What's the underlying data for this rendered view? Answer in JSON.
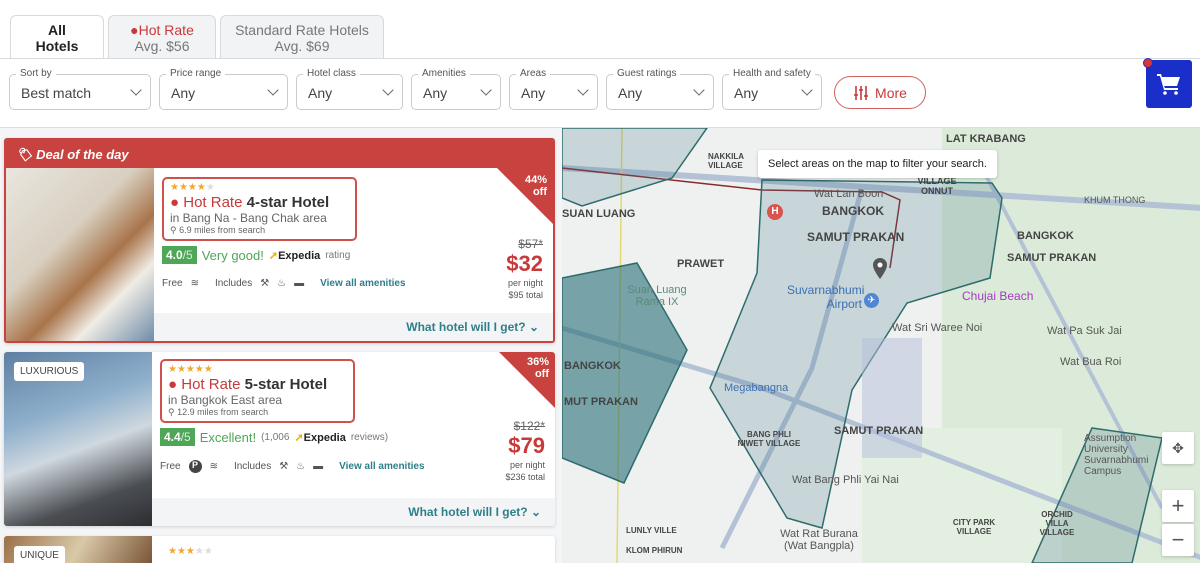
{
  "tabs": [
    {
      "label1": "All",
      "label2": "Hotels"
    },
    {
      "label1": "Hot Rate",
      "label2": "Avg. $56"
    },
    {
      "label1": "Standard Rate Hotels",
      "label2": "Avg. $69"
    }
  ],
  "filters": [
    {
      "label": "Sort by",
      "value": "Best match"
    },
    {
      "label": "Price range",
      "value": "Any"
    },
    {
      "label": "Hotel class",
      "value": "Any"
    },
    {
      "label": "Amenities",
      "value": "Any"
    },
    {
      "label": "Areas",
      "value": "Any"
    },
    {
      "label": "Guest ratings",
      "value": "Any"
    },
    {
      "label": "Health and safety",
      "value": "Any"
    }
  ],
  "more_label": "More",
  "deal_label": "Deal of the day",
  "hotels": [
    {
      "stars": 4,
      "hot_rate": "Hot Rate",
      "title": "4-star Hotel",
      "area": "in Bang Na - Bang Chak area",
      "miles": "6.9 miles from search",
      "score": "4.0",
      "score_max": "/5",
      "verdict": "Very good!",
      "source": "Expedia",
      "reviews_suffix": "rating",
      "free": "Free",
      "includes": "Includes",
      "view_all": "View all amenities",
      "discount": "44%",
      "off": "off",
      "was": "$57*",
      "now": "$32",
      "per_night": "per night",
      "total": "$95 total",
      "what": "What hotel will I get?"
    },
    {
      "badge": "LUXURIOUS",
      "stars": 5,
      "hot_rate": "Hot Rate",
      "title": "5-star Hotel",
      "area": "in Bangkok East area",
      "miles": "12.9 miles from search",
      "score": "4.4",
      "score_max": "/5",
      "verdict": "Excellent!",
      "reviews_prefix": "(1,006",
      "source": "Expedia",
      "reviews_suffix": "reviews)",
      "free": "Free",
      "includes": "Includes",
      "view_all": "View all amenities",
      "discount": "36%",
      "off": "off",
      "was": "$122*",
      "now": "$79",
      "per_night": "per night",
      "total": "$236 total",
      "what": "What hotel will I get?"
    },
    {
      "badge": "UNIQUE",
      "stars": 3
    }
  ],
  "map": {
    "tooltip": "Select areas on the map to filter your search.",
    "labels": [
      "LAT KRABANG",
      "Wat Lan Boon",
      "SINTHON VILLAGE ONNUT",
      "BANGKOK",
      "SAMUT PRAKAN",
      "KHUM THONG",
      "PRAWET",
      "SUAN LUANG",
      "Suan Luang Rama IX",
      "Suvarnabhumi Airport",
      "Chujai Beach",
      "BANGKOK",
      "SAMUT PRAKAN",
      "Wat Sri Waree Noi",
      "Wat Pa Suk Jai",
      "Wat Bua Roi",
      "BANGKOK",
      "MUT PRAKAN",
      "Megabangna",
      "BANG PHLI NIWET VILLAGE",
      "SAMUT PRAKAN",
      "Wat Bang Phli Yai Nai",
      "Assumption University Suvarnabhumi Campus",
      "ORCHID VILLA VILLAGE",
      "CITY PARK VILLAGE",
      "Wat Rat Burana (Wat Bangpla)",
      "LUNLY VILLE",
      "KLOM PHIRUN",
      "NAKKILA VILLAGE"
    ],
    "zoom_in": "+",
    "zoom_out": "−"
  },
  "colors": {
    "accent": "#c8393a",
    "teal": "#2f7f8a",
    "cart": "#1a2fc9",
    "good": "#4ea657"
  }
}
